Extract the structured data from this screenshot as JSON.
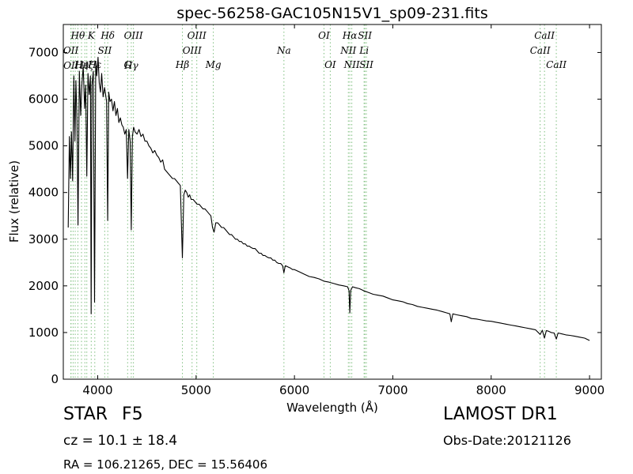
{
  "chart_data": {
    "type": "line",
    "title": "spec-56258-GAC105N15V1_sp09-231.fits",
    "xlabel": "Wavelength (Å)",
    "ylabel": "Flux (relative)",
    "xlim": [
      3650,
      9120
    ],
    "ylim": [
      0,
      7600
    ],
    "xticks": [
      4000,
      5000,
      6000,
      7000,
      8000,
      9000
    ],
    "yticks": [
      0,
      1000,
      2000,
      3000,
      4000,
      5000,
      6000,
      7000
    ],
    "grid": false,
    "series": [
      {
        "color": "#000000",
        "points": [
          [
            3700,
            3250
          ],
          [
            3712,
            5200
          ],
          [
            3722,
            4300
          ],
          [
            3733,
            5300
          ],
          [
            3745,
            4250
          ],
          [
            3757,
            6500
          ],
          [
            3768,
            5100
          ],
          [
            3778,
            6400
          ],
          [
            3789,
            5550
          ],
          [
            3800,
            3300
          ],
          [
            3813,
            6600
          ],
          [
            3827,
            5650
          ],
          [
            3840,
            6350
          ],
          [
            3853,
            6700
          ],
          [
            3866,
            5800
          ],
          [
            3878,
            6300
          ],
          [
            3889,
            4350
          ],
          [
            3901,
            6550
          ],
          [
            3914,
            6100
          ],
          [
            3926,
            6500
          ],
          [
            3933,
            1400
          ],
          [
            3941,
            6300
          ],
          [
            3955,
            6600
          ],
          [
            3968,
            1650
          ],
          [
            3980,
            6800
          ],
          [
            3990,
            6500
          ],
          [
            4003,
            6900
          ],
          [
            4015,
            6350
          ],
          [
            4028,
            6150
          ],
          [
            4040,
            6550
          ],
          [
            4055,
            6050
          ],
          [
            4070,
            6250
          ],
          [
            4090,
            5950
          ],
          [
            4101,
            3400
          ],
          [
            4112,
            6150
          ],
          [
            4125,
            5950
          ],
          [
            4140,
            6000
          ],
          [
            4155,
            5750
          ],
          [
            4170,
            5950
          ],
          [
            4185,
            5650
          ],
          [
            4200,
            5800
          ],
          [
            4215,
            5500
          ],
          [
            4230,
            5600
          ],
          [
            4245,
            5450
          ],
          [
            4260,
            5400
          ],
          [
            4275,
            5250
          ],
          [
            4290,
            5350
          ],
          [
            4303,
            4300
          ],
          [
            4316,
            5350
          ],
          [
            4330,
            5100
          ],
          [
            4341,
            3200
          ],
          [
            4352,
            5200
          ],
          [
            4365,
            5400
          ],
          [
            4380,
            5300
          ],
          [
            4400,
            5250
          ],
          [
            4420,
            5350
          ],
          [
            4440,
            5200
          ],
          [
            4460,
            5250
          ],
          [
            4480,
            5100
          ],
          [
            4500,
            5100
          ],
          [
            4520,
            5000
          ],
          [
            4540,
            4950
          ],
          [
            4560,
            4850
          ],
          [
            4580,
            4900
          ],
          [
            4600,
            4800
          ],
          [
            4620,
            4750
          ],
          [
            4640,
            4650
          ],
          [
            4660,
            4700
          ],
          [
            4680,
            4500
          ],
          [
            4700,
            4450
          ],
          [
            4720,
            4400
          ],
          [
            4740,
            4350
          ],
          [
            4760,
            4300
          ],
          [
            4780,
            4300
          ],
          [
            4800,
            4250
          ],
          [
            4820,
            4200
          ],
          [
            4840,
            4150
          ],
          [
            4861,
            2600
          ],
          [
            4875,
            3950
          ],
          [
            4890,
            4050
          ],
          [
            4905,
            4000
          ],
          [
            4920,
            3900
          ],
          [
            4935,
            3950
          ],
          [
            4950,
            3850
          ],
          [
            4970,
            3850
          ],
          [
            4990,
            3800
          ],
          [
            5010,
            3750
          ],
          [
            5030,
            3750
          ],
          [
            5050,
            3700
          ],
          [
            5070,
            3650
          ],
          [
            5090,
            3650
          ],
          [
            5110,
            3600
          ],
          [
            5130,
            3550
          ],
          [
            5150,
            3500
          ],
          [
            5167,
            3250
          ],
          [
            5183,
            3150
          ],
          [
            5200,
            3350
          ],
          [
            5220,
            3350
          ],
          [
            5240,
            3300
          ],
          [
            5260,
            3250
          ],
          [
            5280,
            3250
          ],
          [
            5300,
            3200
          ],
          [
            5320,
            3150
          ],
          [
            5340,
            3100
          ],
          [
            5360,
            3100
          ],
          [
            5380,
            3050
          ],
          [
            5400,
            3000
          ],
          [
            5420,
            3000
          ],
          [
            5440,
            2950
          ],
          [
            5460,
            2950
          ],
          [
            5480,
            2900
          ],
          [
            5500,
            2900
          ],
          [
            5520,
            2850
          ],
          [
            5540,
            2850
          ],
          [
            5560,
            2820
          ],
          [
            5580,
            2800
          ],
          [
            5600,
            2800
          ],
          [
            5620,
            2750
          ],
          [
            5640,
            2700
          ],
          [
            5660,
            2700
          ],
          [
            5680,
            2650
          ],
          [
            5700,
            2650
          ],
          [
            5720,
            2620
          ],
          [
            5740,
            2600
          ],
          [
            5760,
            2600
          ],
          [
            5780,
            2550
          ],
          [
            5800,
            2550
          ],
          [
            5820,
            2500
          ],
          [
            5840,
            2480
          ],
          [
            5860,
            2480
          ],
          [
            5880,
            2430
          ],
          [
            5893,
            2280
          ],
          [
            5906,
            2430
          ],
          [
            5920,
            2420
          ],
          [
            5940,
            2400
          ],
          [
            5960,
            2380
          ],
          [
            5980,
            2350
          ],
          [
            6000,
            2350
          ],
          [
            6050,
            2300
          ],
          [
            6100,
            2250
          ],
          [
            6150,
            2200
          ],
          [
            6200,
            2180
          ],
          [
            6250,
            2150
          ],
          [
            6300,
            2100
          ],
          [
            6350,
            2080
          ],
          [
            6400,
            2050
          ],
          [
            6450,
            2020
          ],
          [
            6500,
            2000
          ],
          [
            6540,
            1980
          ],
          [
            6555,
            1900
          ],
          [
            6563,
            1420
          ],
          [
            6572,
            1900
          ],
          [
            6590,
            1980
          ],
          [
            6620,
            1960
          ],
          [
            6660,
            1940
          ],
          [
            6700,
            1900
          ],
          [
            6750,
            1860
          ],
          [
            6800,
            1820
          ],
          [
            6850,
            1800
          ],
          [
            6900,
            1780
          ],
          [
            6950,
            1740
          ],
          [
            7000,
            1700
          ],
          [
            7050,
            1680
          ],
          [
            7100,
            1660
          ],
          [
            7150,
            1620
          ],
          [
            7200,
            1600
          ],
          [
            7250,
            1560
          ],
          [
            7300,
            1540
          ],
          [
            7350,
            1520
          ],
          [
            7400,
            1500
          ],
          [
            7450,
            1480
          ],
          [
            7500,
            1450
          ],
          [
            7550,
            1420
          ],
          [
            7580,
            1400
          ],
          [
            7594,
            1230
          ],
          [
            7610,
            1400
          ],
          [
            7650,
            1380
          ],
          [
            7700,
            1360
          ],
          [
            7750,
            1340
          ],
          [
            7800,
            1300
          ],
          [
            7850,
            1290
          ],
          [
            7900,
            1270
          ],
          [
            7950,
            1250
          ],
          [
            8000,
            1240
          ],
          [
            8050,
            1220
          ],
          [
            8100,
            1200
          ],
          [
            8150,
            1180
          ],
          [
            8200,
            1160
          ],
          [
            8250,
            1140
          ],
          [
            8300,
            1120
          ],
          [
            8350,
            1100
          ],
          [
            8400,
            1080
          ],
          [
            8450,
            1060
          ],
          [
            8498,
            960
          ],
          [
            8520,
            1050
          ],
          [
            8542,
            880
          ],
          [
            8560,
            1040
          ],
          [
            8580,
            1030
          ],
          [
            8610,
            1000
          ],
          [
            8640,
            990
          ],
          [
            8662,
            860
          ],
          [
            8680,
            990
          ],
          [
            8720,
            970
          ],
          [
            8760,
            950
          ],
          [
            8800,
            940
          ],
          [
            8850,
            920
          ],
          [
            8900,
            900
          ],
          [
            8950,
            880
          ],
          [
            9000,
            830
          ]
        ]
      }
    ],
    "line_markers": {
      "color": "#7fbf7f",
      "lines": [
        {
          "x": 3727,
          "label": "OII",
          "row": 2
        },
        {
          "x": 3729,
          "label": "OII",
          "row": 3
        },
        {
          "x": 3750,
          "label": "",
          "row": 0
        },
        {
          "x": 3771,
          "label": "",
          "row": 0
        },
        {
          "x": 3798,
          "label": "Hθ",
          "row": 1
        },
        {
          "x": 3835,
          "label": "Hη",
          "row": 4
        },
        {
          "x": 3869,
          "label": "",
          "row": 0
        },
        {
          "x": 3889,
          "label": "Hζ",
          "row": 3
        },
        {
          "x": 3934,
          "label": "K",
          "row": 1
        },
        {
          "x": 3970,
          "label": "Hε",
          "row": 4
        },
        {
          "x": 4071,
          "label": "SII",
          "row": 2
        },
        {
          "x": 4102,
          "label": "Hδ",
          "row": 1
        },
        {
          "x": 4304,
          "label": "G",
          "row": 4
        },
        {
          "x": 4341,
          "label": "Hγ",
          "row": 3
        },
        {
          "x": 4363,
          "label": "OIII",
          "row": 1
        },
        {
          "x": 4861,
          "label": "Hβ",
          "row": 4
        },
        {
          "x": 4959,
          "label": "OIII",
          "row": 2
        },
        {
          "x": 5007,
          "label": "OIII",
          "row": 1
        },
        {
          "x": 5175,
          "label": "Mg",
          "row": 4
        },
        {
          "x": 5893,
          "label": "Na",
          "row": 2
        },
        {
          "x": 6300,
          "label": "OI",
          "row": 1
        },
        {
          "x": 6364,
          "label": "OI",
          "row": 4
        },
        {
          "x": 6548,
          "label": "NII",
          "row": 2
        },
        {
          "x": 6563,
          "label": "Hα",
          "row": 1
        },
        {
          "x": 6583,
          "label": "NII",
          "row": 4
        },
        {
          "x": 6708,
          "label": "Li",
          "row": 2
        },
        {
          "x": 6716,
          "label": "SII",
          "row": 1
        },
        {
          "x": 6731,
          "label": "SII",
          "row": 4
        },
        {
          "x": 8498,
          "label": "CaII",
          "row": 2
        },
        {
          "x": 8542,
          "label": "CaII",
          "row": 1
        },
        {
          "x": 8662,
          "label": "CaII",
          "row": 4
        }
      ]
    }
  },
  "info": {
    "object_class": "STAR",
    "subclass": "F5",
    "survey": "LAMOST DR1",
    "redshift_text": "cz = 10.1  ± 18.4",
    "obs_date_text": "Obs-Date:20121126",
    "coords_text": "RA = 106.21265, DEC = 15.56406"
  }
}
